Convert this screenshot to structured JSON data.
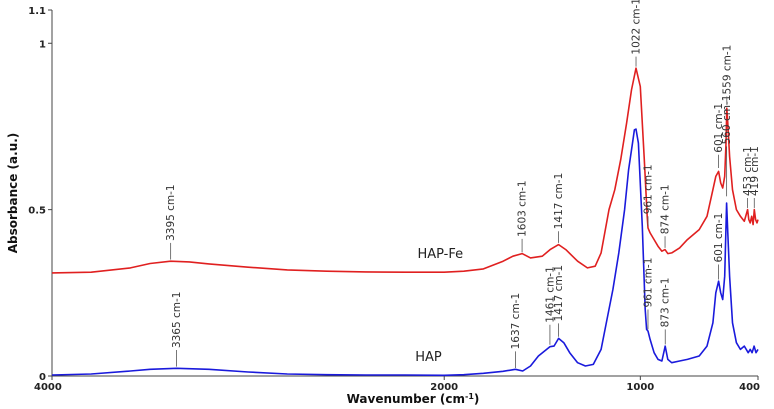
{
  "chart_data": {
    "type": "line",
    "title": "",
    "xlabel": "Wavenumber (cm",
    "xlabel_sup": "-1",
    "xlabel_close": ")",
    "ylabel": "Absorbance (a.u.)",
    "xlim": [
      4000,
      400
    ],
    "ylim": [
      0,
      1.1
    ],
    "x_ticks": [
      {
        "value": 4000,
        "label": "4000"
      },
      {
        "value": 2000,
        "label": "2000"
      },
      {
        "value": 1000,
        "label": "1000"
      },
      {
        "value": 400,
        "label": "400"
      }
    ],
    "y_ticks": [
      {
        "value": 0,
        "label": "0"
      },
      {
        "value": 0.5,
        "label": "0.5"
      },
      {
        "value": 1,
        "label": "1"
      },
      {
        "value": 1.1,
        "label": "1.1"
      }
    ],
    "grid": false,
    "series": [
      {
        "name": "HAP-Fe",
        "color": "#e02020",
        "points": [
          [
            4000,
            0.31
          ],
          [
            3800,
            0.312
          ],
          [
            3600,
            0.325
          ],
          [
            3500,
            0.338
          ],
          [
            3395,
            0.345
          ],
          [
            3300,
            0.343
          ],
          [
            3200,
            0.337
          ],
          [
            3000,
            0.327
          ],
          [
            2800,
            0.319
          ],
          [
            2600,
            0.315
          ],
          [
            2400,
            0.313
          ],
          [
            2200,
            0.312
          ],
          [
            2000,
            0.312
          ],
          [
            1900,
            0.315
          ],
          [
            1800,
            0.322
          ],
          [
            1700,
            0.345
          ],
          [
            1650,
            0.36
          ],
          [
            1603,
            0.368
          ],
          [
            1560,
            0.355
          ],
          [
            1500,
            0.36
          ],
          [
            1460,
            0.38
          ],
          [
            1417,
            0.395
          ],
          [
            1380,
            0.38
          ],
          [
            1320,
            0.345
          ],
          [
            1270,
            0.325
          ],
          [
            1230,
            0.33
          ],
          [
            1200,
            0.37
          ],
          [
            1160,
            0.5
          ],
          [
            1130,
            0.56
          ],
          [
            1100,
            0.65
          ],
          [
            1070,
            0.76
          ],
          [
            1045,
            0.86
          ],
          [
            1022,
            0.925
          ],
          [
            1000,
            0.87
          ],
          [
            980,
            0.65
          ],
          [
            965,
            0.48
          ],
          [
            961,
            0.445
          ],
          [
            950,
            0.43
          ],
          [
            930,
            0.41
          ],
          [
            910,
            0.39
          ],
          [
            890,
            0.375
          ],
          [
            874,
            0.38
          ],
          [
            860,
            0.368
          ],
          [
            840,
            0.37
          ],
          [
            800,
            0.385
          ],
          [
            760,
            0.41
          ],
          [
            700,
            0.44
          ],
          [
            660,
            0.48
          ],
          [
            630,
            0.56
          ],
          [
            615,
            0.6
          ],
          [
            601,
            0.615
          ],
          [
            590,
            0.58
          ],
          [
            580,
            0.565
          ],
          [
            570,
            0.6
          ],
          [
            563,
            0.7
          ],
          [
            559,
            0.805
          ],
          [
            554,
            0.76
          ],
          [
            545,
            0.66
          ],
          [
            530,
            0.56
          ],
          [
            510,
            0.5
          ],
          [
            490,
            0.48
          ],
          [
            470,
            0.465
          ],
          [
            453,
            0.5
          ],
          [
            447,
            0.47
          ],
          [
            440,
            0.46
          ],
          [
            432,
            0.48
          ],
          [
            425,
            0.455
          ],
          [
            419,
            0.5
          ],
          [
            412,
            0.47
          ],
          [
            405,
            0.46
          ],
          [
            400,
            0.47
          ]
        ]
      },
      {
        "name": "HAP",
        "color": "#1a1adc",
        "points": [
          [
            4000,
            0.003
          ],
          [
            3800,
            0.006
          ],
          [
            3600,
            0.015
          ],
          [
            3500,
            0.02
          ],
          [
            3365,
            0.023
          ],
          [
            3200,
            0.02
          ],
          [
            3000,
            0.012
          ],
          [
            2800,
            0.006
          ],
          [
            2600,
            0.004
          ],
          [
            2400,
            0.003
          ],
          [
            2200,
            0.003
          ],
          [
            2000,
            0.002
          ],
          [
            1900,
            0.004
          ],
          [
            1800,
            0.008
          ],
          [
            1700,
            0.014
          ],
          [
            1637,
            0.02
          ],
          [
            1600,
            0.015
          ],
          [
            1560,
            0.03
          ],
          [
            1520,
            0.06
          ],
          [
            1461,
            0.088
          ],
          [
            1440,
            0.09
          ],
          [
            1417,
            0.113
          ],
          [
            1390,
            0.1
          ],
          [
            1360,
            0.07
          ],
          [
            1320,
            0.04
          ],
          [
            1280,
            0.03
          ],
          [
            1240,
            0.035
          ],
          [
            1200,
            0.08
          ],
          [
            1170,
            0.17
          ],
          [
            1140,
            0.26
          ],
          [
            1110,
            0.37
          ],
          [
            1080,
            0.5
          ],
          [
            1060,
            0.62
          ],
          [
            1040,
            0.7
          ],
          [
            1030,
            0.74
          ],
          [
            1022,
            0.742
          ],
          [
            1010,
            0.7
          ],
          [
            990,
            0.45
          ],
          [
            975,
            0.2
          ],
          [
            968,
            0.14
          ],
          [
            961,
            0.135
          ],
          [
            950,
            0.11
          ],
          [
            930,
            0.07
          ],
          [
            910,
            0.05
          ],
          [
            890,
            0.045
          ],
          [
            873,
            0.09
          ],
          [
            860,
            0.05
          ],
          [
            840,
            0.04
          ],
          [
            800,
            0.045
          ],
          [
            760,
            0.05
          ],
          [
            700,
            0.06
          ],
          [
            660,
            0.09
          ],
          [
            630,
            0.16
          ],
          [
            615,
            0.25
          ],
          [
            601,
            0.285
          ],
          [
            590,
            0.25
          ],
          [
            580,
            0.23
          ],
          [
            570,
            0.3
          ],
          [
            563,
            0.45
          ],
          [
            560,
            0.52
          ],
          [
            554,
            0.43
          ],
          [
            545,
            0.3
          ],
          [
            530,
            0.16
          ],
          [
            510,
            0.1
          ],
          [
            490,
            0.08
          ],
          [
            470,
            0.09
          ],
          [
            450,
            0.07
          ],
          [
            440,
            0.08
          ],
          [
            430,
            0.07
          ],
          [
            420,
            0.09
          ],
          [
            410,
            0.07
          ],
          [
            400,
            0.08
          ]
        ]
      }
    ],
    "series_labels": [
      {
        "text": "HAP-Fe",
        "x": 2020,
        "y": 0.355
      },
      {
        "text": "HAP",
        "x": 2080,
        "y": 0.045
      }
    ],
    "annotations": [
      {
        "text": "3395 cm-1",
        "x": 3395,
        "y": 0.35,
        "length": 0.05
      },
      {
        "text": "1603 cm-1",
        "x": 1603,
        "y": 0.372,
        "length": 0.04
      },
      {
        "text": "1417 cm-1",
        "x": 1417,
        "y": 0.4,
        "length": 0.035
      },
      {
        "text": "1022 cm-1",
        "x": 1022,
        "y": 0.93,
        "length": 0.03
      },
      {
        "text": "961 cm-1",
        "x": 961,
        "y": 0.45,
        "length": 0.03
      },
      {
        "text": "874 cm-1",
        "x": 874,
        "y": 0.385,
        "length": 0.035
      },
      {
        "text": "601 cm-1",
        "x": 601,
        "y": 0.625,
        "length": 0.04
      },
      {
        "text": "560 cm-1",
        "x": 560,
        "y": 0.54,
        "length": 0.15
      },
      {
        "text": "559 cm-1",
        "x": 559,
        "y": 0.815,
        "length": 0.025
      },
      {
        "text": "453 cm-1",
        "x": 453,
        "y": 0.505,
        "length": 0.03
      },
      {
        "text": "419 cm-1",
        "x": 419,
        "y": 0.505,
        "length": 0.03
      },
      {
        "text": "3365 cm-1",
        "x": 3365,
        "y": 0.028,
        "length": 0.05
      },
      {
        "text": "1637 cm-1",
        "x": 1637,
        "y": 0.024,
        "length": 0.05
      },
      {
        "text": "1461 cm-1",
        "x": 1461,
        "y": 0.094,
        "length": 0.06
      },
      {
        "text": "1417 cm-1",
        "x": 1417,
        "y": 0.118,
        "length": 0.04
      },
      {
        "text": "961 cm-1",
        "x": 961,
        "y": 0.14,
        "length": 0.06
      },
      {
        "text": "873 cm-1",
        "x": 873,
        "y": 0.095,
        "length": 0.045
      },
      {
        "text": "601 cm-1",
        "x": 601,
        "y": 0.29,
        "length": 0.045
      }
    ]
  }
}
